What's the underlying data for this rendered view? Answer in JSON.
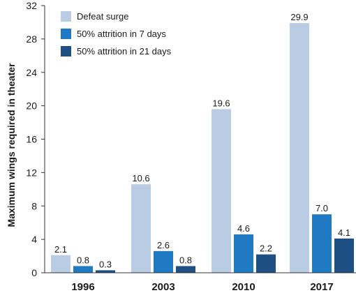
{
  "chart_data": {
    "type": "bar",
    "title": "",
    "xlabel": "",
    "ylabel": "Maximum wings required in theater",
    "categories": [
      "1996",
      "2003",
      "2010",
      "2017"
    ],
    "series": [
      {
        "name": "Defeat surge",
        "color": "#b9cce4",
        "values": [
          2.1,
          10.6,
          19.6,
          29.9
        ],
        "labels": [
          "2.1",
          "10.6",
          "19.6",
          "29.9"
        ]
      },
      {
        "name": "50% attrition in 7 days",
        "color": "#1f7ac3",
        "values": [
          0.8,
          2.6,
          4.6,
          7.0
        ],
        "labels": [
          "0.8",
          "2.6",
          "4.6",
          "7.0"
        ]
      },
      {
        "name": "50% attrition in 21 days",
        "color": "#1d4f82",
        "values": [
          0.3,
          0.8,
          2.2,
          4.1
        ],
        "labels": [
          "0.3",
          "0.8",
          "2.2",
          "4.1"
        ]
      }
    ],
    "ylim": [
      0,
      32
    ],
    "yticks": [
      0,
      4,
      8,
      12,
      16,
      20,
      24,
      28,
      32
    ],
    "ytick_labels": [
      "0",
      "4",
      "8",
      "12",
      "16",
      "20",
      "24",
      "28",
      "32"
    ],
    "grid": false,
    "legend_position": "top-left"
  }
}
